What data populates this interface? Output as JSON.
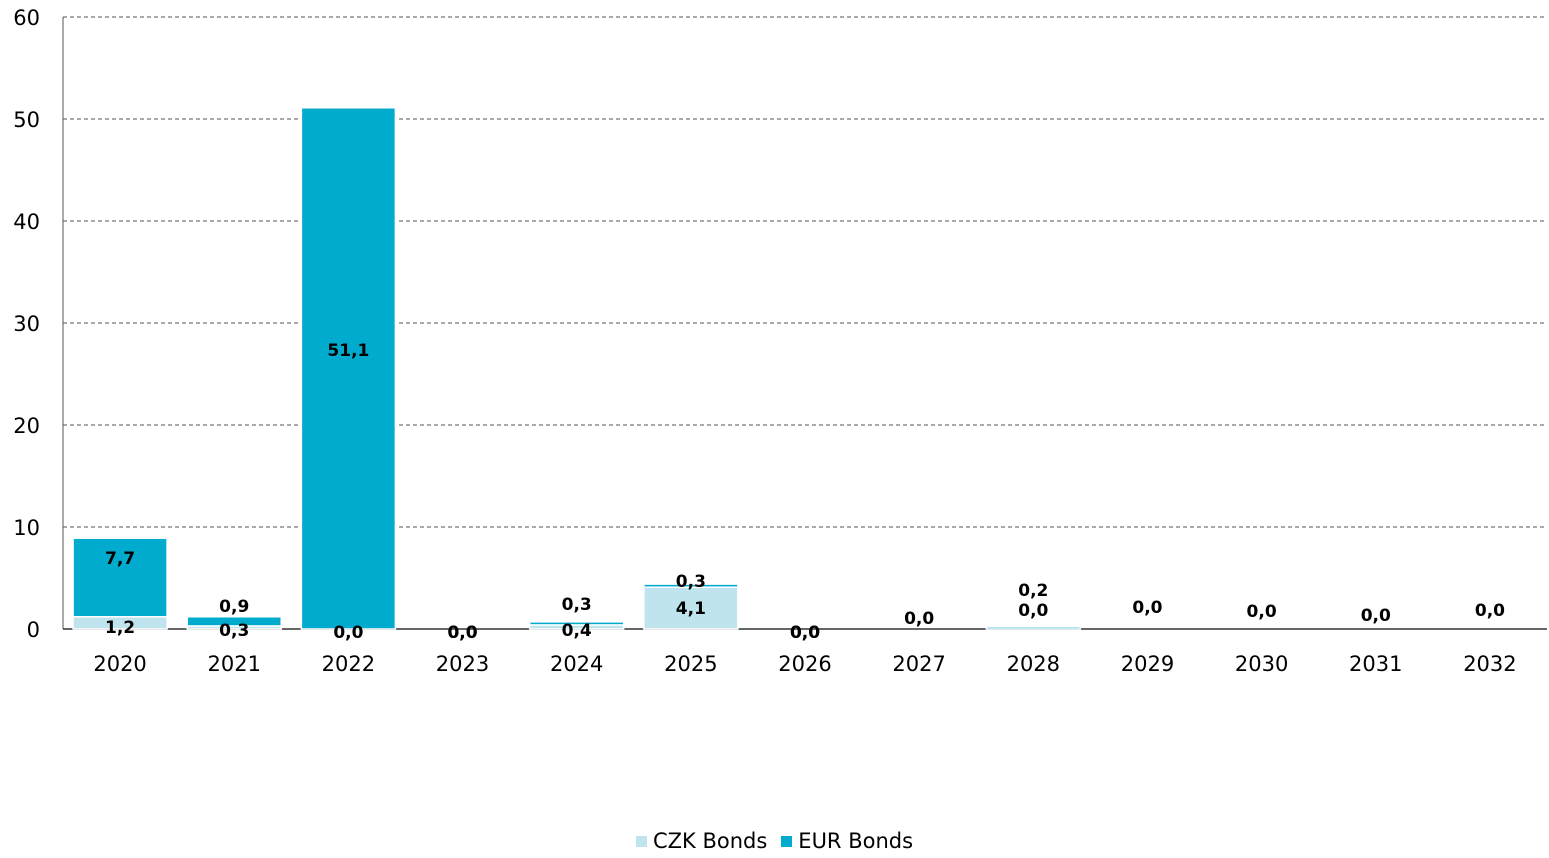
{
  "chart_data": {
    "type": "bar",
    "stacked": true,
    "categories": [
      "2020",
      "2021",
      "2022",
      "2023",
      "2024",
      "2025",
      "2026",
      "2027",
      "2028",
      "2029",
      "2030",
      "2031",
      "2032"
    ],
    "series": [
      {
        "name": "CZK Bonds",
        "color": "#bfe4ed",
        "values": [
          1.2,
          0.3,
          0.0,
          0.0,
          0.4,
          4.1,
          0.0,
          0.0,
          0.0,
          0.0,
          0.0,
          0.0,
          0.0
        ],
        "labels": [
          "1,2",
          "0,3",
          "0,0",
          "0,0",
          "0,4",
          "4,1",
          "0,0",
          "",
          "0,0",
          "",
          "",
          "",
          ""
        ]
      },
      {
        "name": "EUR Bonds",
        "color": "#00abcd",
        "values": [
          7.7,
          0.9,
          51.1,
          0.0,
          0.3,
          0.3,
          0.0,
          0.0,
          0.2,
          0.0,
          0.0,
          0.0,
          0.0
        ],
        "labels": [
          "7,7",
          "0,9",
          "51,1",
          "0,0",
          "0,3",
          "0,3",
          "0,0",
          "0,0",
          "0,2",
          "0,0",
          "0,0",
          "0,0",
          "0,0"
        ]
      }
    ],
    "yticks": [
      "0",
      "10",
      "20",
      "30",
      "40",
      "50",
      "60"
    ],
    "ylim": [
      0,
      60
    ],
    "grid": true,
    "legend": "bottom"
  }
}
